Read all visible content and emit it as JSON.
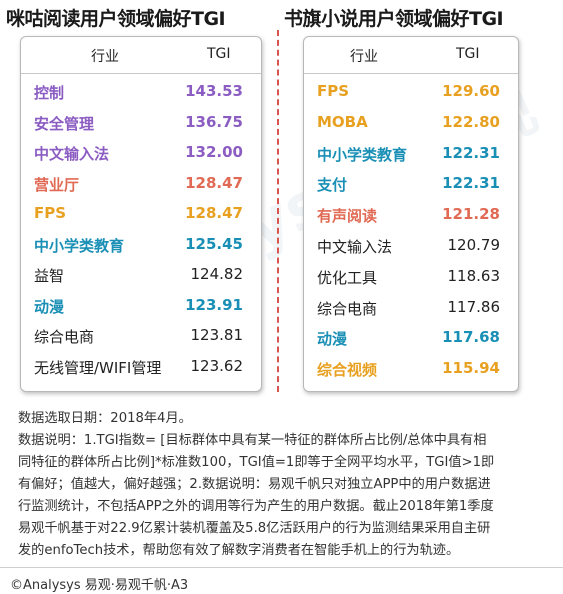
{
  "chart_data": [
    {
      "type": "table",
      "title": "咪咕阅读用户领域偏好TGI",
      "columns": [
        "行业",
        "TGI"
      ],
      "rows": [
        {
          "industry": "控制",
          "tgi": "143.53",
          "color": "#8b5cc2",
          "bold": true
        },
        {
          "industry": "安全管理",
          "tgi": "136.75",
          "color": "#8b5cc2",
          "bold": true
        },
        {
          "industry": "中文输入法",
          "tgi": "132.00",
          "color": "#8b5cc2",
          "bold": true
        },
        {
          "industry": "营业厅",
          "tgi": "128.47",
          "color": "#e06a54",
          "bold": true
        },
        {
          "industry": "FPS",
          "tgi": "128.47",
          "color": "#e8a020",
          "bold": true
        },
        {
          "industry": "中小学类教育",
          "tgi": "125.45",
          "color": "#1a8fb5",
          "bold": true
        },
        {
          "industry": "益智",
          "tgi": "124.82",
          "color": "#222222",
          "bold": false
        },
        {
          "industry": "动漫",
          "tgi": "123.91",
          "color": "#1a8fb5",
          "bold": true
        },
        {
          "industry": "综合电商",
          "tgi": "123.81",
          "color": "#222222",
          "bold": false
        },
        {
          "industry": "无线管理/WIFI管理",
          "tgi": "123.62",
          "color": "#222222",
          "bold": false
        }
      ]
    },
    {
      "type": "table",
      "title": "书旗小说用户领域偏好TGI",
      "columns": [
        "行业",
        "TGI"
      ],
      "rows": [
        {
          "industry": "FPS",
          "tgi": "129.60",
          "color": "#e8a020",
          "bold": true
        },
        {
          "industry": "MOBA",
          "tgi": "122.80",
          "color": "#e8a020",
          "bold": true
        },
        {
          "industry": "中小学类教育",
          "tgi": "122.31",
          "color": "#1a8fb5",
          "bold": true
        },
        {
          "industry": "支付",
          "tgi": "122.31",
          "color": "#1a8fb5",
          "bold": true
        },
        {
          "industry": "有声阅读",
          "tgi": "121.28",
          "color": "#e06a54",
          "bold": true
        },
        {
          "industry": "中文输入法",
          "tgi": "120.79",
          "color": "#222222",
          "bold": false
        },
        {
          "industry": "优化工具",
          "tgi": "118.63",
          "color": "#222222",
          "bold": false
        },
        {
          "industry": "综合电商",
          "tgi": "117.86",
          "color": "#222222",
          "bold": false
        },
        {
          "industry": "动漫",
          "tgi": "117.68",
          "color": "#1a8fb5",
          "bold": true
        },
        {
          "industry": "综合视频",
          "tgi": "115.94",
          "color": "#e8a020",
          "bold": true
        }
      ]
    }
  ],
  "notes": {
    "date_line": "数据选取日期：2018年4月。",
    "desc_line1": "数据说明：1.TGI指数= [目标群体中具有某一特征的群体所占比例/总体中具有相",
    "desc_line2": "同特征的群体所占比例]*标准数100，TGI值=1即等于全网平均水平，TGI值>1即",
    "desc_line3": "有偏好；值越大，偏好越强；2.数据说明：易观千帆只对独立APP中的用户数据进",
    "desc_line4": "行监测统计，不包括APP之外的调用等行为产生的用户数据。截止2018年第1季度",
    "desc_line5": "易观千帆基于对22.9亿累计装机覆盖及5.8亿活跃用户的行为监测结果采用自主研",
    "desc_line6": "发的enfoTech技术，帮助您有效了解数字消费者在智能手机上的行为轨迹。"
  },
  "copyright": "©Analysys 易观·易观千帆·A3"
}
